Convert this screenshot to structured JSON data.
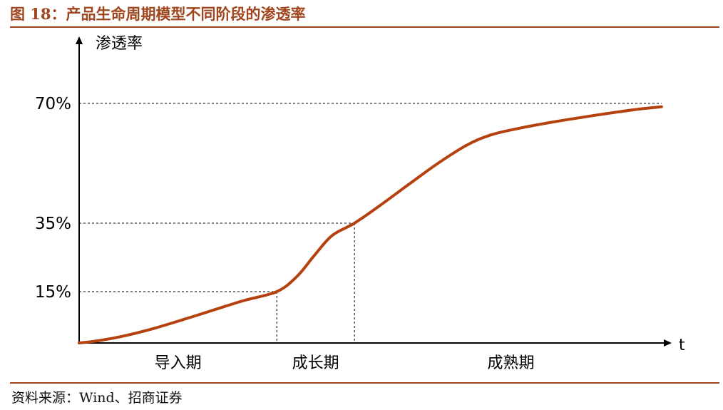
{
  "figure": {
    "title": "图 18：产品生命周期模型不同阶段的渗透率",
    "source": "资料来源：Wind、招商证券"
  },
  "chart_data": {
    "type": "line",
    "title": "",
    "ylabel": "渗透率",
    "xlabel": "t",
    "ylim": [
      0,
      100
    ],
    "yticks": [
      {
        "value": 15,
        "label": "15%"
      },
      {
        "value": 35,
        "label": "35%"
      },
      {
        "value": 70,
        "label": "70%"
      }
    ],
    "stages": [
      "导入期",
      "成长期",
      "成熟期"
    ],
    "stage_boundaries": [
      {
        "x": 33.6,
        "y": 15
      },
      {
        "x": 46.8,
        "y": 35
      }
    ],
    "x": [
      0,
      3,
      8,
      13,
      18,
      23,
      28,
      33.6,
      37,
      40,
      43,
      46.8,
      51,
      56,
      61,
      66,
      70,
      75,
      80,
      85,
      90,
      95,
      99
    ],
    "series": [
      {
        "values": [
          0,
          0.6,
          2.2,
          4.4,
          7.0,
          9.7,
          12.4,
          15,
          19.4,
          25.6,
          31.4,
          35,
          40,
          46.3,
          52.5,
          57.9,
          60.8,
          62.8,
          64.4,
          65.8,
          67.1,
          68.3,
          69.0
        ],
        "color": "#b5410f"
      }
    ],
    "grid": false,
    "guide_color": "#000000",
    "axis_color": "#000000"
  }
}
